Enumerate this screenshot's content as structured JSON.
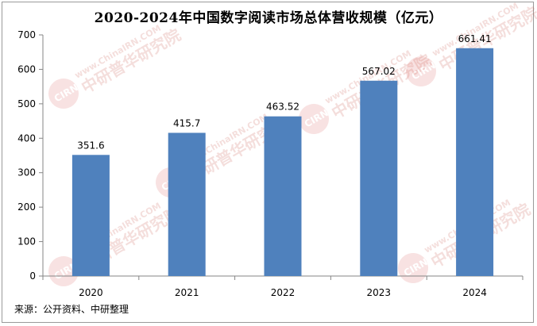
{
  "chart_data": {
    "type": "bar",
    "title": "2020-2024年中国数字阅读市场总体营收规模（亿元）",
    "categories": [
      "2020",
      "2021",
      "2022",
      "2023",
      "2024"
    ],
    "values": [
      351.6,
      415.7,
      463.52,
      567.02,
      661.41
    ],
    "value_labels": [
      "351.6",
      "415.7",
      "463.52",
      "567.02",
      "661.41"
    ],
    "ylim": [
      0,
      700
    ],
    "yticks": [
      0,
      100,
      200,
      300,
      400,
      500,
      600,
      700
    ],
    "grid": false,
    "legend": "none",
    "bar_color": "#4f81bd"
  },
  "source": "来源：公开资料、中研整理",
  "watermark": {
    "brand": "CIRN",
    "url": "www.ChinaIRN.COM",
    "name": "中研普华研究院"
  }
}
